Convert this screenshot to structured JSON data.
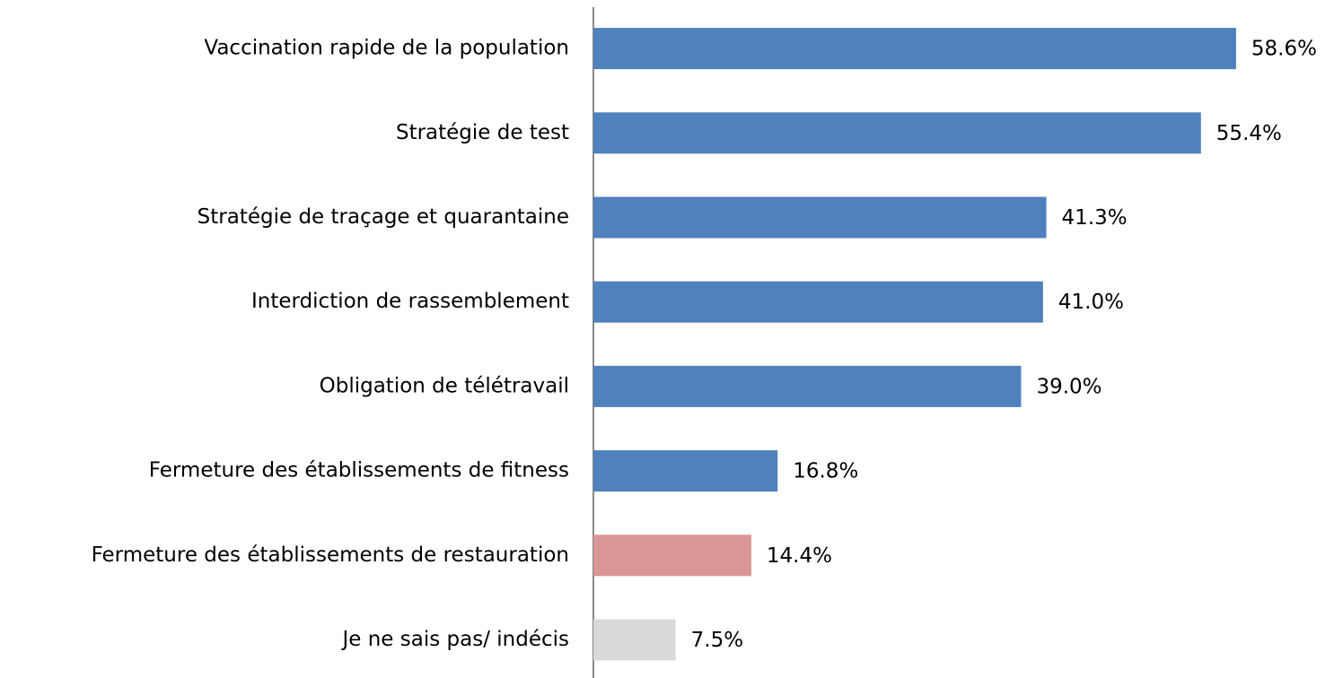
{
  "chart_data": {
    "type": "bar",
    "orientation": "horizontal",
    "categories": [
      "Vaccination rapide de la population",
      "Stratégie de test",
      "Stratégie de traçage et quarantaine",
      "Interdiction de rassemblement",
      "Obligation de télétravail",
      "Fermeture des établissements de fitness",
      "Fermeture des établissements de restauration",
      "Je ne sais pas/ indécis"
    ],
    "values": [
      58.6,
      55.4,
      41.3,
      41.0,
      39.0,
      16.8,
      14.4,
      7.5
    ],
    "value_labels": [
      "58.6%",
      "55.4%",
      "41.3%",
      "41.0%",
      "39.0%",
      "16.8%",
      "14.4%",
      "7.5%"
    ],
    "colors": [
      "#4f81bd",
      "#4f81bd",
      "#4f81bd",
      "#4f81bd",
      "#4f81bd",
      "#4f81bd",
      "#d99694",
      "#d9d9d9"
    ],
    "xlim": [
      0,
      60
    ]
  }
}
